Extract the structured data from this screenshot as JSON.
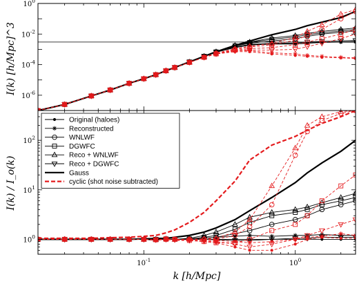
{
  "chart_data": [
    {
      "type": "line",
      "panel": "top",
      "xlabel": "",
      "ylabel": "I(k) [h/Mpc]^3",
      "xscale": "log",
      "yscale": "log",
      "xlim": [
        0.02,
        2.5
      ],
      "ylim": [
        1e-07,
        1
      ],
      "grid": false,
      "x": [
        0.02,
        0.03,
        0.045,
        0.06,
        0.08,
        0.1,
        0.12,
        0.14,
        0.16,
        0.2,
        0.25,
        0.3,
        0.4,
        0.5,
        0.7,
        1.0,
        1.2,
        1.5,
        2.0,
        2.5
      ],
      "yticks": [
        {
          "v": 1e-06,
          "t": "10^-6"
        },
        {
          "v": 0.0001,
          "t": "10^-4"
        },
        {
          "v": 0.01,
          "t": "10^-2"
        },
        {
          "v": 1,
          "t": "10^0"
        }
      ],
      "hline": 0.003,
      "series": [
        {
          "style": "gauss",
          "values": [
            1e-07,
            2.5e-07,
            9e-07,
            2.2e-06,
            6e-06,
            1.2e-05,
            2.2e-05,
            4e-05,
            6.5e-05,
            0.00015,
            0.00035,
            0.0007,
            0.0018,
            0.0035,
            0.009,
            0.02,
            0.035,
            0.06,
            0.12,
            0.3
          ]
        },
        {
          "style": "black",
          "marker": "dot",
          "values": [
            1e-07,
            2.5e-07,
            9e-07,
            2.2e-06,
            6e-06,
            1.2e-05,
            2.2e-05,
            4e-05,
            6.5e-05,
            0.00015,
            0.00035,
            0.00065,
            0.0014,
            0.002,
            0.0022,
            0.0022,
            0.0025,
            0.0028,
            0.003,
            0.003
          ]
        },
        {
          "style": "black",
          "marker": "star",
          "values": [
            1e-07,
            2.5e-07,
            9e-07,
            2.2e-06,
            6e-06,
            1.2e-05,
            2.2e-05,
            4e-05,
            6.5e-05,
            0.00015,
            0.00035,
            0.00065,
            0.0013,
            0.0019,
            0.0022,
            0.0023,
            0.0026,
            0.0029,
            0.0031,
            0.0032
          ]
        },
        {
          "style": "black",
          "marker": "circle",
          "values": [
            1e-07,
            2.5e-07,
            9e-07,
            2.2e-06,
            6e-06,
            1.2e-05,
            2.2e-05,
            4e-05,
            6.5e-05,
            0.00015,
            0.00035,
            0.00065,
            0.0016,
            0.0025,
            0.0035,
            0.005,
            0.007,
            0.01,
            0.013,
            0.016
          ]
        },
        {
          "style": "black",
          "marker": "square",
          "values": [
            1e-07,
            2.5e-07,
            9e-07,
            2.2e-06,
            6e-06,
            1.2e-05,
            2.2e-05,
            4e-05,
            6.5e-05,
            0.00015,
            0.00035,
            0.00068,
            0.0017,
            0.0028,
            0.0045,
            0.0065,
            0.009,
            0.012,
            0.016,
            0.02
          ]
        },
        {
          "style": "black",
          "marker": "up",
          "values": [
            1e-07,
            2.5e-07,
            9e-07,
            2.2e-06,
            6e-06,
            1.2e-05,
            2.2e-05,
            4e-05,
            6.5e-05,
            0.00015,
            0.00035,
            0.0007,
            0.0018,
            0.003,
            0.0055,
            0.008,
            0.011,
            0.015,
            0.02,
            0.025
          ]
        },
        {
          "style": "black",
          "marker": "down",
          "values": [
            1e-07,
            2.5e-07,
            9e-07,
            2.2e-06,
            6e-06,
            1.2e-05,
            2.2e-05,
            4e-05,
            6.5e-05,
            0.00015,
            0.00035,
            0.00065,
            0.0014,
            0.0021,
            0.0025,
            0.0026,
            0.003,
            0.0033,
            0.0036,
            0.0038
          ]
        },
        {
          "style": "red",
          "marker": "dot",
          "values": [
            1e-07,
            2.5e-07,
            9e-07,
            2.2e-06,
            6e-06,
            1.2e-05,
            2.2e-05,
            4e-05,
            6.5e-05,
            0.00014,
            0.0003,
            0.0005,
            0.0007,
            0.0007,
            0.0005,
            0.0004,
            0.00035,
            0.0003,
            0.00028,
            0.00025
          ]
        },
        {
          "style": "red",
          "marker": "star",
          "values": [
            1e-07,
            2.5e-07,
            9e-07,
            2.2e-06,
            6e-06,
            1.2e-05,
            2.2e-05,
            4e-05,
            6.5e-05,
            0.00014,
            0.0003,
            0.0005,
            0.0008,
            0.0008,
            0.0006,
            0.0005,
            0.0004,
            0.00035,
            0.0003,
            0.00028
          ]
        },
        {
          "style": "red",
          "marker": "circle",
          "values": [
            1e-07,
            2.5e-07,
            9e-07,
            2.2e-06,
            6e-06,
            1.2e-05,
            2.2e-05,
            4e-05,
            6.5e-05,
            0.00014,
            0.0003,
            0.00055,
            0.001,
            0.0014,
            0.002,
            0.004,
            0.008,
            0.02,
            0.1,
            0.3
          ]
        },
        {
          "style": "red",
          "marker": "square",
          "values": [
            1e-07,
            2.5e-07,
            9e-07,
            2.2e-06,
            6e-06,
            1.2e-05,
            2.2e-05,
            4e-05,
            6.5e-05,
            0.00014,
            0.0003,
            0.0005,
            0.0009,
            0.0011,
            0.0013,
            0.002,
            0.003,
            0.005,
            0.01,
            0.02
          ]
        },
        {
          "style": "red",
          "marker": "up",
          "values": [
            1e-07,
            2.5e-07,
            9e-07,
            2.2e-06,
            6e-06,
            1.2e-05,
            2.2e-05,
            4e-05,
            6.5e-05,
            0.00014,
            0.0003,
            0.00055,
            0.0011,
            0.0016,
            0.0025,
            0.006,
            0.015,
            0.04,
            0.2,
            0.4
          ]
        },
        {
          "style": "red",
          "marker": "down",
          "values": [
            1e-07,
            2.5e-07,
            9e-07,
            2.2e-06,
            6e-06,
            1.2e-05,
            2.2e-05,
            4e-05,
            6.5e-05,
            0.00014,
            0.0003,
            0.0005,
            0.0008,
            0.0009,
            0.0009,
            0.001,
            0.0015,
            0.0025,
            0.005,
            0.01
          ]
        }
      ]
    },
    {
      "type": "line",
      "panel": "bottom",
      "xlabel": "k [h/Mpc]",
      "ylabel": "I(k) / I_o(k)",
      "xscale": "log",
      "yscale": "log",
      "xlim": [
        0.02,
        2.5
      ],
      "ylim": [
        0.5,
        400
      ],
      "grid": false,
      "legend_position": "top-left",
      "x": [
        0.02,
        0.03,
        0.045,
        0.06,
        0.08,
        0.1,
        0.12,
        0.14,
        0.16,
        0.2,
        0.25,
        0.3,
        0.4,
        0.5,
        0.7,
        1.0,
        1.2,
        1.5,
        2.0,
        2.5
      ],
      "xticks": [
        {
          "v": 0.1,
          "t": "10^-1"
        },
        {
          "v": 1,
          "t": "10^0"
        }
      ],
      "yticks": [
        {
          "v": 1,
          "t": "10^0"
        },
        {
          "v": 10,
          "t": "10^1"
        },
        {
          "v": 100,
          "t": "10^2"
        }
      ],
      "legend": [
        {
          "label": "Original (haloes)",
          "style": "black",
          "marker": "dot"
        },
        {
          "label": "Reconstructed",
          "style": "black",
          "marker": "star"
        },
        {
          "label": "WNLWF",
          "style": "black",
          "marker": "circle"
        },
        {
          "label": "DGWFC",
          "style": "black",
          "marker": "square"
        },
        {
          "label": "Reco + WNLWF",
          "style": "black",
          "marker": "up"
        },
        {
          "label": "Reco + DGWFC",
          "style": "black",
          "marker": "down"
        },
        {
          "label": "Gauss",
          "style": "gauss",
          "marker": "none"
        },
        {
          "label": "cyclic (shot noise subtracted)",
          "style": "cyclic",
          "marker": "none"
        }
      ],
      "series": [
        {
          "style": "gauss",
          "values": [
            1,
            1,
            1,
            1,
            1,
            1.02,
            1.04,
            1.05,
            1.1,
            1.2,
            1.4,
            1.7,
            2.5,
            3.8,
            7,
            14,
            22,
            35,
            60,
            100
          ]
        },
        {
          "style": "cyclic",
          "values": [
            1.05,
            1.05,
            1.05,
            1.08,
            1.1,
            1.15,
            1.2,
            1.35,
            1.55,
            2.2,
            3.5,
            6,
            15,
            40,
            80,
            120,
            160,
            220,
            300,
            400
          ]
        },
        {
          "style": "black",
          "marker": "dot",
          "values": [
            1,
            1,
            1,
            1,
            1,
            1,
            1,
            1,
            1,
            1,
            1,
            1,
            1,
            1,
            1,
            1,
            1,
            1,
            1,
            1
          ]
        },
        {
          "style": "black",
          "marker": "star",
          "values": [
            1,
            1,
            0.98,
            0.98,
            1,
            1,
            0.95,
            1.02,
            1,
            1,
            1.05,
            1.1,
            1.15,
            1.2,
            1.15,
            1.2,
            1.2,
            1.25,
            1.2,
            1.2
          ]
        },
        {
          "style": "black",
          "marker": "circle",
          "values": [
            1,
            1,
            1,
            1,
            1,
            1,
            1,
            1.02,
            1,
            1,
            1.05,
            1.1,
            1.3,
            1.5,
            2,
            2.5,
            3,
            4,
            5,
            6
          ]
        },
        {
          "style": "black",
          "marker": "square",
          "values": [
            1,
            1,
            1,
            1,
            1,
            1,
            1,
            1.02,
            1,
            1.02,
            1.1,
            1.2,
            1.6,
            2.2,
            3,
            3.5,
            4,
            5,
            6,
            7
          ]
        },
        {
          "style": "black",
          "marker": "up",
          "values": [
            1,
            1,
            1,
            1,
            1,
            1,
            1,
            1.02,
            1,
            1.05,
            1.2,
            1.4,
            2,
            2.8,
            3.5,
            4,
            4.5,
            5.5,
            7,
            8.5
          ]
        },
        {
          "style": "black",
          "marker": "down",
          "values": [
            1,
            1,
            1,
            1,
            1,
            1,
            1,
            1,
            1,
            1,
            1,
            0.98,
            0.95,
            0.95,
            1,
            1.05,
            1.05,
            1.1,
            1.1,
            1.1
          ]
        },
        {
          "style": "red",
          "marker": "dot",
          "values": [
            1,
            1,
            1,
            1,
            1,
            1,
            0.95,
            1,
            0.95,
            0.95,
            0.9,
            0.85,
            0.7,
            0.6,
            0.6,
            0.8,
            1,
            1.1,
            1.05,
            1.05
          ]
        },
        {
          "style": "red",
          "marker": "star",
          "values": [
            1,
            1,
            1,
            1,
            1,
            1,
            0.98,
            1.02,
            0.98,
            0.98,
            0.95,
            0.95,
            0.9,
            0.85,
            0.9,
            1,
            1.1,
            1.15,
            1.3,
            1.2
          ]
        },
        {
          "style": "red",
          "marker": "circle",
          "values": [
            1,
            1,
            1,
            1,
            1,
            1,
            0.98,
            1.02,
            1,
            1,
            1,
            1,
            1.2,
            1.8,
            5,
            50,
            150,
            250,
            350,
            400
          ]
        },
        {
          "style": "red",
          "marker": "square",
          "values": [
            1,
            1,
            1,
            1,
            1,
            1,
            0.98,
            1,
            1,
            0.95,
            0.9,
            0.85,
            0.85,
            1,
            1.5,
            2,
            3,
            6,
            12,
            20
          ]
        },
        {
          "style": "red",
          "marker": "up",
          "values": [
            1,
            1,
            1,
            1,
            1,
            1,
            0.98,
            1.02,
            1,
            1,
            1.02,
            1.05,
            1.4,
            2.5,
            12,
            70,
            200,
            300,
            380,
            400
          ]
        },
        {
          "style": "red",
          "marker": "down",
          "values": [
            1,
            1,
            1,
            1,
            1,
            1,
            0.98,
            1,
            0.98,
            0.95,
            0.92,
            0.9,
            0.8,
            0.7,
            0.8,
            1,
            1.2,
            1.5,
            2,
            2.5
          ]
        }
      ]
    }
  ]
}
